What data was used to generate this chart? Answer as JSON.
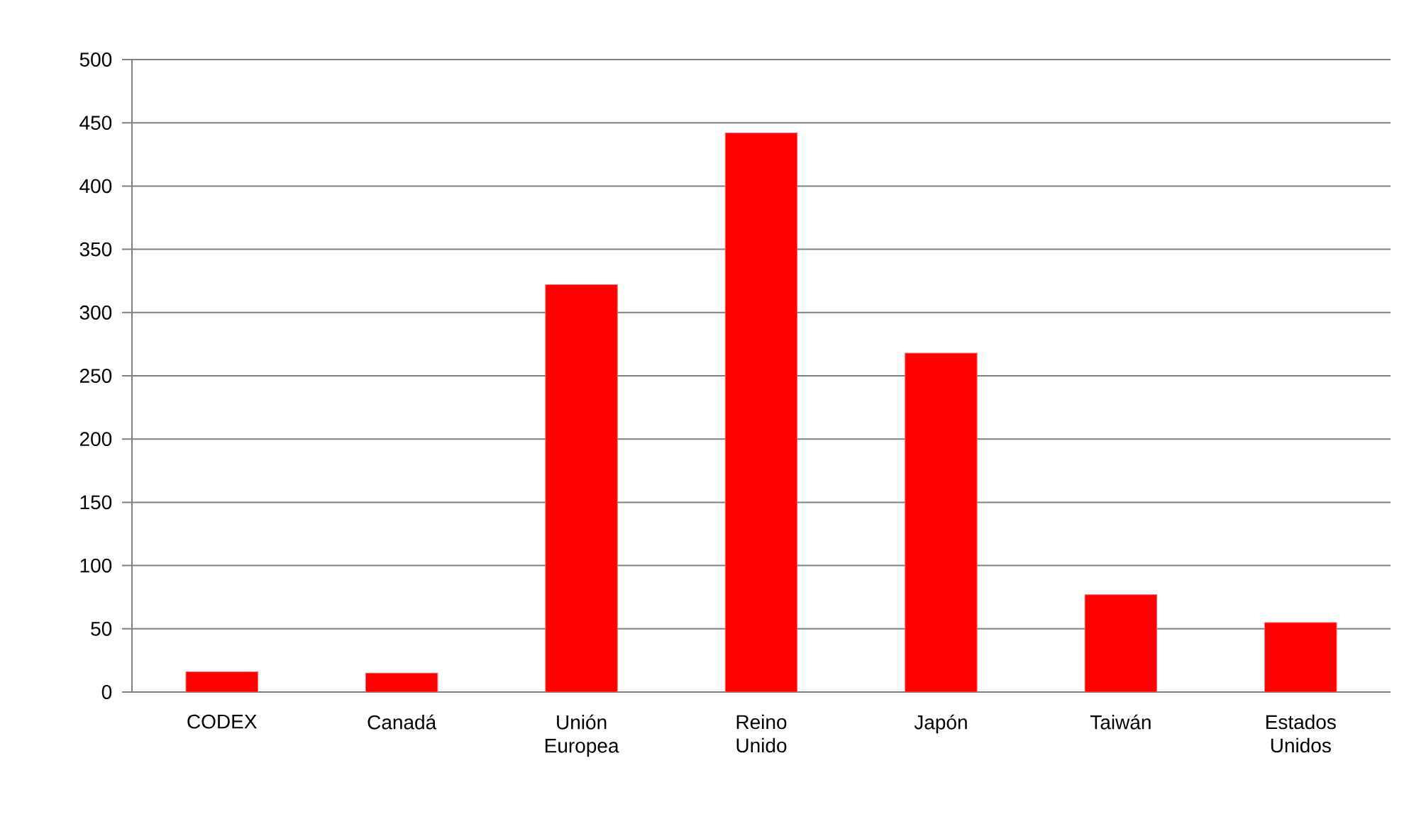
{
  "chart_data": {
    "type": "bar",
    "categories": [
      "CODEX",
      "Canadá",
      "Unión Europea",
      "Reino Unido",
      "Japón",
      "Taiwán",
      "Estados Unidos"
    ],
    "values": [
      16,
      15,
      322,
      442,
      268,
      77,
      55
    ],
    "color": "#ff0000",
    "ylim": [
      0,
      500
    ],
    "yticks": [
      0,
      50,
      100,
      150,
      200,
      250,
      300,
      350,
      400,
      450,
      500
    ],
    "grid": "y"
  }
}
